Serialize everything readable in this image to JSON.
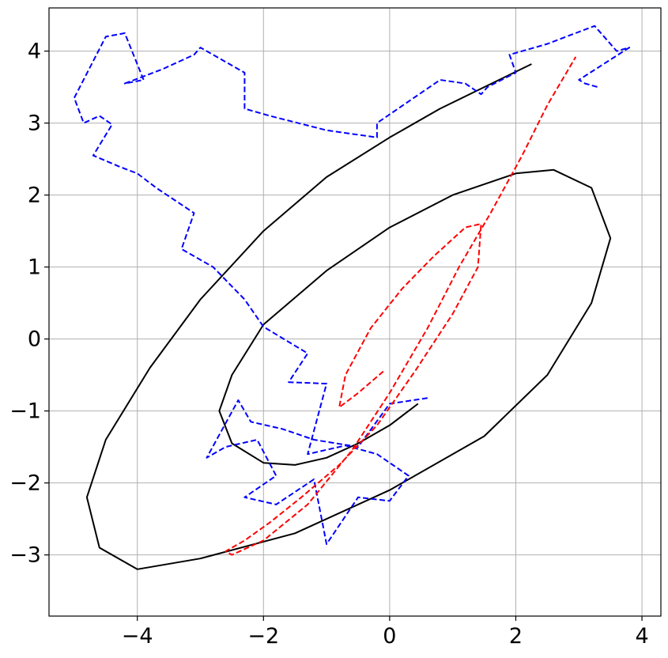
{
  "chart_data": {
    "type": "line",
    "title": "",
    "xlabel": "",
    "ylabel": "",
    "xlim": [
      -5.4,
      4.3
    ],
    "ylim": [
      -3.85,
      4.6
    ],
    "grid": true,
    "legend": "none",
    "x_ticks": [
      -4,
      -2,
      0,
      2,
      4
    ],
    "y_ticks": [
      -3,
      -2,
      -1,
      0,
      1,
      2,
      3,
      4
    ],
    "x_tick_labels": [
      "−4",
      "−2",
      "0",
      "2",
      "4"
    ],
    "y_tick_labels": [
      "−3",
      "−2",
      "−1",
      "0",
      "1",
      "2",
      "3",
      "4"
    ],
    "series": [
      {
        "style": "solid",
        "color": "#000000",
        "x": [
          0.45,
          0.0,
          -0.5,
          -1.0,
          -1.5,
          -2.0,
          -2.5,
          -2.7,
          -2.5,
          -2.0,
          -1.0,
          0.0,
          1.0,
          2.0,
          2.6,
          3.2,
          3.5,
          3.2,
          2.5,
          1.5,
          0.0,
          -1.5,
          -3.0,
          -4.0,
          -4.6,
          -4.8,
          -4.5,
          -3.8,
          -3.0,
          -2.0,
          -1.0,
          0.0,
          0.8,
          1.5,
          2.25
        ],
        "y": [
          -0.9,
          -1.2,
          -1.45,
          -1.65,
          -1.75,
          -1.72,
          -1.45,
          -1.0,
          -0.5,
          0.2,
          0.95,
          1.55,
          2.0,
          2.3,
          2.35,
          2.1,
          1.4,
          0.5,
          -0.5,
          -1.35,
          -2.1,
          -2.7,
          -3.05,
          -3.2,
          -2.9,
          -2.2,
          -1.4,
          -0.4,
          0.55,
          1.5,
          2.25,
          2.8,
          3.2,
          3.5,
          3.82
        ]
      },
      {
        "style": "dashed",
        "color": "#0000ff",
        "x": [
          0.6,
          0.0,
          -0.5,
          -1.2,
          -1.7,
          -2.2,
          -2.4,
          -2.9,
          -2.6,
          -2.1,
          -1.8,
          -2.3,
          -1.8,
          -1.2,
          -1.0,
          -0.5,
          0.0,
          0.3,
          -0.2,
          -0.7,
          -1.3,
          -1.0,
          -1.6,
          -1.3,
          -2.0,
          -2.3,
          -2.8,
          -3.3,
          -3.1,
          -3.7,
          -4.0,
          -4.3,
          -4.7,
          -4.4,
          -4.6,
          -4.85,
          -5.0,
          -4.5,
          -4.2,
          -3.9,
          -4.2,
          -3.6,
          -3.1,
          -3.0,
          -2.3,
          -2.3,
          -1.9,
          -1.0,
          -0.2,
          -0.2,
          0.3,
          0.8,
          1.2,
          1.45,
          1.55,
          2.0,
          1.9,
          2.5,
          3.1,
          3.25,
          3.6,
          3.8,
          3.0,
          3.1,
          3.3
        ],
        "y": [
          -0.82,
          -0.9,
          -1.5,
          -1.4,
          -1.25,
          -1.15,
          -0.85,
          -1.65,
          -1.5,
          -1.4,
          -1.9,
          -2.2,
          -2.3,
          -1.95,
          -2.85,
          -2.2,
          -2.25,
          -1.9,
          -1.6,
          -1.48,
          -1.6,
          -0.62,
          -0.6,
          -0.2,
          0.17,
          0.55,
          1.0,
          1.25,
          1.75,
          2.1,
          2.3,
          2.4,
          2.55,
          2.98,
          3.1,
          3.0,
          3.35,
          4.2,
          4.25,
          3.6,
          3.55,
          3.75,
          3.95,
          4.05,
          3.7,
          3.2,
          3.1,
          2.9,
          2.8,
          3.0,
          3.3,
          3.6,
          3.55,
          3.4,
          3.5,
          3.7,
          3.95,
          4.1,
          4.3,
          4.35,
          4.0,
          4.05,
          3.6,
          3.55,
          3.5
        ]
      },
      {
        "style": "dashed",
        "color": "#ff0000",
        "x": [
          -0.1,
          -0.5,
          -0.8,
          -0.7,
          -0.3,
          0.2,
          0.7,
          1.2,
          1.45,
          1.4,
          1.0,
          0.4,
          -0.2,
          -0.8,
          -1.4,
          -1.9,
          -2.3,
          -2.6,
          -2.5,
          -2.0,
          -1.3,
          -0.6,
          0.0,
          0.6,
          1.1,
          1.6,
          2.1,
          2.5,
          2.95
        ],
        "y": [
          -0.45,
          -0.75,
          -0.95,
          -0.5,
          0.15,
          0.7,
          1.15,
          1.55,
          1.6,
          1.0,
          0.35,
          -0.45,
          -1.2,
          -1.75,
          -2.2,
          -2.55,
          -2.8,
          -2.95,
          -3.0,
          -2.8,
          -2.3,
          -1.55,
          -0.75,
          0.15,
          1.0,
          1.75,
          2.55,
          3.25,
          3.92
        ]
      }
    ]
  }
}
